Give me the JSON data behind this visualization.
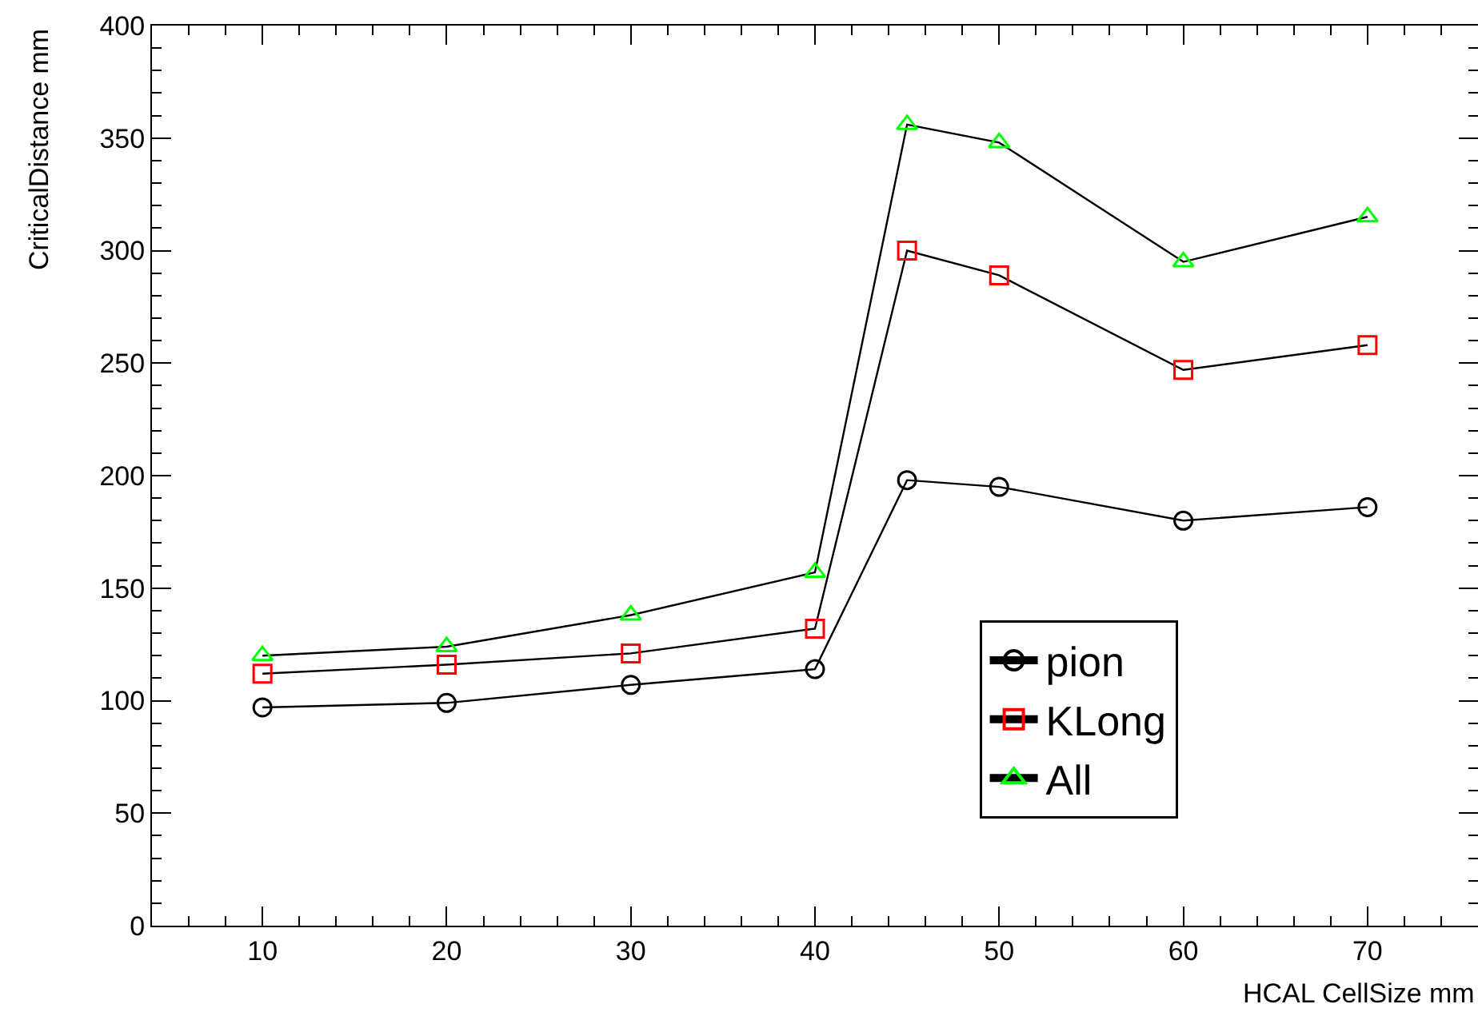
{
  "chart_data": {
    "type": "line",
    "xlabel": "HCAL CellSize mm",
    "ylabel": "CriticalDistance mm",
    "x": [
      10,
      20,
      30,
      40,
      45,
      50,
      60,
      70
    ],
    "series": [
      {
        "name": "pion",
        "color": "#000000",
        "marker": "circle",
        "values": [
          97,
          99,
          107,
          114,
          198,
          195,
          180,
          186
        ]
      },
      {
        "name": "KLong",
        "color": "#ff0000",
        "marker": "square",
        "values": [
          112,
          116,
          121,
          132,
          300,
          289,
          247,
          258
        ]
      },
      {
        "name": "All",
        "color": "#00ff00",
        "marker": "triangle",
        "values": [
          120,
          124,
          138,
          157,
          356,
          348,
          295,
          315
        ]
      }
    ],
    "xlim": [
      4,
      76
    ],
    "xticks": [
      10,
      20,
      30,
      40,
      50,
      60,
      70
    ],
    "ylim": [
      0,
      400
    ],
    "yticks": [
      0,
      50,
      100,
      150,
      200,
      250,
      300,
      350,
      400
    ],
    "grid": false,
    "legend": "bottom right"
  }
}
